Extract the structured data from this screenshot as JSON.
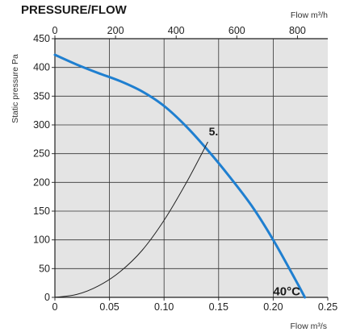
{
  "chart_data": {
    "type": "line",
    "title": "PRESSURE/FLOW",
    "xlabel": "Flow m³/s",
    "ylabel": "Static pressure Pa",
    "top_xlabel": "Flow m³/h",
    "xlim": [
      0,
      0.25
    ],
    "ylim": [
      0,
      450
    ],
    "top_xlim": [
      0,
      900
    ],
    "x_ticks": [
      0,
      0.05,
      0.1,
      0.15,
      0.2,
      0.25
    ],
    "x_tick_labels": [
      "0",
      "0.05",
      "0.10",
      "0.15",
      "0.20",
      "0.25"
    ],
    "y_ticks": [
      0,
      50,
      100,
      150,
      200,
      250,
      300,
      350,
      400,
      450
    ],
    "y_tick_labels": [
      "0",
      "50",
      "100",
      "150",
      "200",
      "250",
      "300",
      "350",
      "400",
      "450"
    ],
    "top_ticks": [
      0,
      200,
      400,
      600,
      800
    ],
    "top_tick_labels": [
      "0",
      "200",
      "400",
      "600",
      "800"
    ],
    "grid": true,
    "plot_background": "#e4e4e4",
    "series": [
      {
        "name": "",
        "role": "fan curve",
        "color": "#1f7fd0",
        "x": [
          0,
          0.02,
          0.04,
          0.06,
          0.08,
          0.1,
          0.12,
          0.14,
          0.16,
          0.18,
          0.2,
          0.22,
          0.229
        ],
        "y": [
          422,
          405,
          390,
          376,
          358,
          333,
          298,
          256,
          210,
          160,
          100,
          32,
          0
        ]
      },
      {
        "name": "",
        "role": "system curve",
        "color": "#222222",
        "x": [
          0,
          0.02,
          0.04,
          0.06,
          0.08,
          0.1,
          0.12,
          0.14
        ],
        "y": [
          0,
          5,
          20,
          45,
          82,
          134,
          198,
          270
        ]
      }
    ],
    "annotations": [
      {
        "text": "5.",
        "x": 0.141,
        "y": 282
      },
      {
        "text": "40°C",
        "x": 0.2,
        "y": 12
      }
    ]
  }
}
